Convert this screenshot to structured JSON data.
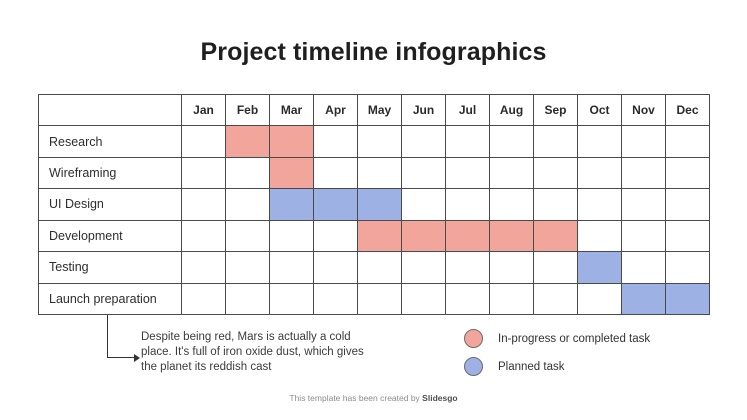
{
  "title": "Project timeline infographics",
  "table": {
    "months": [
      "Jan",
      "Feb",
      "Mar",
      "Apr",
      "May",
      "Jun",
      "Jul",
      "Aug",
      "Sep",
      "Oct",
      "Nov",
      "Dec"
    ],
    "tasks": [
      {
        "label": "Research",
        "cells": [
          "",
          "done",
          "done",
          "",
          "",
          "",
          "",
          "",
          "",
          "",
          "",
          ""
        ]
      },
      {
        "label": "Wireframing",
        "cells": [
          "",
          "",
          "done",
          "",
          "",
          "",
          "",
          "",
          "",
          "",
          "",
          ""
        ]
      },
      {
        "label": "UI Design",
        "cells": [
          "",
          "",
          "planned",
          "planned",
          "planned",
          "",
          "",
          "",
          "",
          "",
          "",
          ""
        ]
      },
      {
        "label": "Development",
        "cells": [
          "",
          "",
          "",
          "",
          "done",
          "done",
          "done",
          "done",
          "done",
          "",
          "",
          ""
        ]
      },
      {
        "label": "Testing",
        "cells": [
          "",
          "",
          "",
          "",
          "",
          "",
          "",
          "",
          "",
          "planned",
          "",
          ""
        ]
      },
      {
        "label": "Launch preparation",
        "cells": [
          "",
          "",
          "",
          "",
          "",
          "",
          "",
          "",
          "",
          "",
          "planned",
          "planned"
        ]
      }
    ]
  },
  "note": {
    "text": "Despite being red, Mars is actually a cold\nplace. It's full of iron oxide dust, which gives\nthe planet its reddish cast"
  },
  "legend": [
    {
      "label": "In-progress or completed task",
      "color": "#F2A69B"
    },
    {
      "label": "Planned task",
      "color": "#9EB1E4"
    }
  ],
  "footer": {
    "prefix": "This template has been created by ",
    "brand": "Slidesgo"
  },
  "colors": {
    "in_progress": "#F2A69B",
    "planned": "#9EB1E4",
    "grid_border": "#4a4a4a"
  },
  "chart_data": {
    "type": "table",
    "title": "Project timeline infographics",
    "columns": [
      "Jan",
      "Feb",
      "Mar",
      "Apr",
      "May",
      "Jun",
      "Jul",
      "Aug",
      "Sep",
      "Oct",
      "Nov",
      "Dec"
    ],
    "rows": [
      {
        "task": "Research",
        "months": [
          "Feb",
          "Mar"
        ],
        "status": "in-progress-or-completed"
      },
      {
        "task": "Wireframing",
        "months": [
          "Mar"
        ],
        "status": "in-progress-or-completed"
      },
      {
        "task": "UI Design",
        "months": [
          "Mar",
          "Apr",
          "May"
        ],
        "status": "planned"
      },
      {
        "task": "Development",
        "months": [
          "May",
          "Jun",
          "Jul",
          "Aug",
          "Sep"
        ],
        "status": "in-progress-or-completed"
      },
      {
        "task": "Testing",
        "months": [
          "Oct"
        ],
        "status": "planned"
      },
      {
        "task": "Launch preparation",
        "months": [
          "Nov",
          "Dec"
        ],
        "status": "planned"
      }
    ],
    "legend": [
      {
        "label": "In-progress or completed task",
        "color": "#F2A69B"
      },
      {
        "label": "Planned task",
        "color": "#9EB1E4"
      }
    ],
    "annotation": "Despite being red, Mars is actually a cold place. It's full of iron oxide dust, which gives the planet its reddish cast"
  }
}
